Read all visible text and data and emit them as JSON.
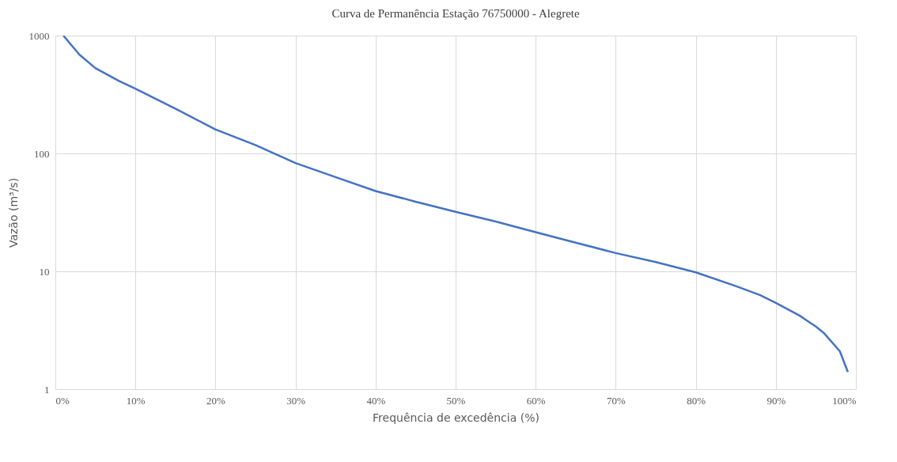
{
  "chart_data": {
    "type": "line",
    "title": "Curva de Permanência Estação 76750000 - Alegrete",
    "xlabel": "Frequência de excedência (%)",
    "ylabel": "Vazão (m³/s)",
    "x": [
      1,
      3,
      5,
      8,
      10,
      15,
      20,
      25,
      30,
      35,
      40,
      45,
      50,
      55,
      60,
      65,
      70,
      75,
      80,
      85,
      88,
      90,
      93,
      95,
      96,
      98,
      99
    ],
    "series": [
      {
        "color": "#4472c4",
        "values": [
          1000,
          690,
          530,
          410,
          355,
          240,
          160,
          118,
          83,
          63,
          48,
          39,
          32,
          26.5,
          21.5,
          17.5,
          14.3,
          12,
          9.8,
          7.5,
          6.3,
          5.4,
          4.2,
          3.4,
          3.0,
          2.1,
          1.4
        ]
      }
    ],
    "xlim": [
      0,
      100
    ],
    "xticks": [
      {
        "value": 0,
        "label": "0%"
      },
      {
        "value": 10,
        "label": "10%"
      },
      {
        "value": 20,
        "label": "20%"
      },
      {
        "value": 30,
        "label": "30%"
      },
      {
        "value": 40,
        "label": "40%"
      },
      {
        "value": 50,
        "label": "50%"
      },
      {
        "value": 60,
        "label": "60%"
      },
      {
        "value": 70,
        "label": "70%"
      },
      {
        "value": 80,
        "label": "80%"
      },
      {
        "value": 90,
        "label": "90%"
      },
      {
        "value": 100,
        "label": "100%"
      }
    ],
    "ylim": [
      1,
      1000
    ],
    "yticks": [
      1,
      10,
      100,
      1000
    ],
    "log": true,
    "grid": true,
    "line_style": "solid"
  }
}
